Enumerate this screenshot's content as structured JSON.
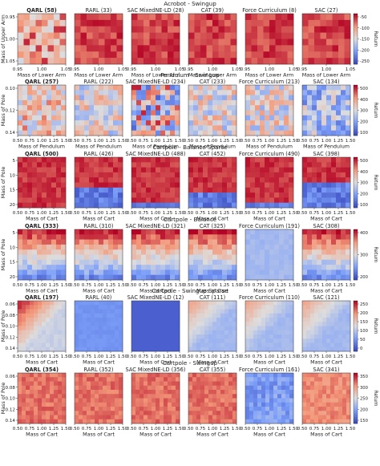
{
  "chart_data": [
    {
      "type": "heatmap",
      "title": "Acrobot - Swingup",
      "xlabel": "Mass of Lower Arm",
      "ylabel": "Mass of Upper Arm",
      "xticks": [
        "0.95",
        "1.00",
        "1.05"
      ],
      "yticks": [
        "0.95",
        "1.00",
        "1.05"
      ],
      "colorbar": {
        "label": "Return",
        "ticks": [
          "-50",
          "-100",
          "-150",
          "-200",
          "-250"
        ],
        "range": [
          -250,
          -25
        ]
      },
      "panels": [
        {
          "label": "QARL",
          "value": "58",
          "bold": true,
          "mean": -58
        },
        {
          "label": "RARL",
          "value": "33",
          "bold": false,
          "mean": -33
        },
        {
          "label": "SAC MixedNE-LD",
          "value": "28",
          "bold": false,
          "mean": -28
        },
        {
          "label": "CAT",
          "value": "39",
          "bold": false,
          "mean": -39
        },
        {
          "label": "Force Curriculum",
          "value": "8",
          "bold": false,
          "mean": -8
        },
        {
          "label": "SAC",
          "value": "27",
          "bold": false,
          "mean": -27
        }
      ]
    },
    {
      "type": "heatmap",
      "title": "Pendulum - Swingup",
      "xlabel": "Mass of Pendulum",
      "ylabel": "Mass of Pole",
      "xticks": [
        "0.50",
        "0.75",
        "1.00",
        "1.25",
        "1.50"
      ],
      "yticks": [
        "0.10",
        "0.12",
        "0.14"
      ],
      "colorbar": {
        "label": "Return",
        "ticks": [
          "500",
          "400",
          "300",
          "200",
          "100"
        ],
        "range": [
          50,
          520
        ]
      },
      "panels": [
        {
          "label": "QARL",
          "value": "257",
          "bold": true,
          "mean": 257
        },
        {
          "label": "RARL",
          "value": "222",
          "bold": false,
          "mean": 222
        },
        {
          "label": "SAC MixedNE-LD",
          "value": "234",
          "bold": false,
          "mean": 234
        },
        {
          "label": "CAT",
          "value": "233",
          "bold": false,
          "mean": 233
        },
        {
          "label": "Force Curriculum",
          "value": "213",
          "bold": false,
          "mean": 213
        },
        {
          "label": "SAC",
          "value": "134",
          "bold": false,
          "mean": 134
        }
      ]
    },
    {
      "type": "heatmap",
      "title": "Cartpole - Balance Sparse",
      "xlabel": "Mass of Cart",
      "ylabel": "Mass of Pole",
      "xticks": [
        "0.50",
        "0.75",
        "1.00",
        "1.25",
        "1.50"
      ],
      "yticks": [
        "5",
        "10",
        "15",
        "20"
      ],
      "colorbar": {
        "label": "Return",
        "ticks": [
          "500",
          "400",
          "300",
          "200",
          "100"
        ],
        "range": [
          50,
          510
        ]
      },
      "panels": [
        {
          "label": "QARL",
          "value": "500",
          "bold": true,
          "mean": 500
        },
        {
          "label": "RARL",
          "value": "426",
          "bold": false,
          "mean": 426
        },
        {
          "label": "SAC MixedNE-LD",
          "value": "488",
          "bold": false,
          "mean": 488
        },
        {
          "label": "CAT",
          "value": "452",
          "bold": false,
          "mean": 452
        },
        {
          "label": "Force Curriculum",
          "value": "490",
          "bold": false,
          "mean": 490
        },
        {
          "label": "SAC",
          "value": "398",
          "bold": false,
          "mean": 398
        }
      ]
    },
    {
      "type": "heatmap",
      "title": "Cartpole - Balance",
      "xlabel": "Mass of Cart",
      "ylabel": "Mass of Pole",
      "xticks": [
        "0.50",
        "0.75",
        "1.00",
        "1.25",
        "1.50"
      ],
      "yticks": [
        "5",
        "10",
        "15",
        "20"
      ],
      "colorbar": {
        "label": "Return",
        "ticks": [
          "400",
          "300",
          "200"
        ],
        "range": [
          130,
          440
        ]
      },
      "panels": [
        {
          "label": "QARL",
          "value": "333",
          "bold": true,
          "mean": 333
        },
        {
          "label": "RARL",
          "value": "310",
          "bold": false,
          "mean": 310
        },
        {
          "label": "SAC MixedNE-LD",
          "value": "321",
          "bold": false,
          "mean": 321
        },
        {
          "label": "CAT",
          "value": "325",
          "bold": false,
          "mean": 325
        },
        {
          "label": "Force Curriculum",
          "value": "191",
          "bold": false,
          "mean": 191
        },
        {
          "label": "SAC",
          "value": "308",
          "bold": false,
          "mean": 308
        }
      ]
    },
    {
      "type": "heatmap",
      "title": "Cartpole - Swingup Sparse",
      "xlabel": "Mass of Cart",
      "ylabel": "Mass of Pole",
      "xticks": [
        "0.50",
        "0.75",
        "1.00",
        "1.25",
        "1.50"
      ],
      "yticks": [
        "0.06",
        "0.08",
        "0.10",
        "0.12",
        "0.14"
      ],
      "colorbar": {
        "label": "Return",
        "ticks": [
          "250",
          "200",
          "150",
          "100",
          "50",
          "0"
        ],
        "range": [
          0,
          270
        ]
      },
      "panels": [
        {
          "label": "QARL",
          "value": "197",
          "bold": true,
          "mean": 197
        },
        {
          "label": "RARL",
          "value": "40",
          "bold": false,
          "mean": 40
        },
        {
          "label": "SAC MixedNE-LD",
          "value": "12",
          "bold": false,
          "mean": 12
        },
        {
          "label": "CAT",
          "value": "111",
          "bold": false,
          "mean": 111
        },
        {
          "label": "Force Curriculum",
          "value": "110",
          "bold": false,
          "mean": 110
        },
        {
          "label": "SAC",
          "value": "121",
          "bold": false,
          "mean": 121
        }
      ]
    },
    {
      "type": "heatmap",
      "title": "Cartpole - Swingup",
      "xlabel": "Mass of Cart",
      "ylabel": "Mass of Pole",
      "xticks": [
        "0.50",
        "0.75",
        "1.00",
        "1.25",
        "1.50"
      ],
      "yticks": [
        "0.06",
        "0.08",
        "0.10",
        "0.12",
        "0.14"
      ],
      "colorbar": {
        "label": "Return",
        "ticks": [
          "350",
          "300",
          "250",
          "200",
          "150"
        ],
        "range": [
          120,
          380
        ]
      },
      "panels": [
        {
          "label": "QARL",
          "value": "354",
          "bold": true,
          "mean": 354
        },
        {
          "label": "RARL",
          "value": "352",
          "bold": false,
          "mean": 352
        },
        {
          "label": "SAC MixedNE-LD",
          "value": "356",
          "bold": false,
          "mean": 356
        },
        {
          "label": "CAT",
          "value": "355",
          "bold": false,
          "mean": 355
        },
        {
          "label": "Force Curriculum",
          "value": "161",
          "bold": false,
          "mean": 161
        },
        {
          "label": "SAC",
          "value": "341",
          "bold": false,
          "mean": 341
        }
      ]
    }
  ]
}
